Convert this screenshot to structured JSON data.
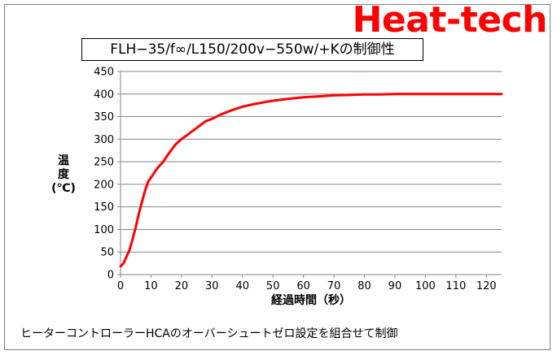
{
  "brand": {
    "text": "Heat-tech",
    "color": "#ff0000"
  },
  "chart_data": {
    "type": "line",
    "title": "FLH−35/f∞/L150/200v−550w/+Kの制御性",
    "xlabel": "経過時間（秒）",
    "ylabel_lines": [
      "温",
      "度",
      "(℃)"
    ],
    "xlim": [
      0,
      125
    ],
    "ylim": [
      0,
      450
    ],
    "x_ticks": [
      0,
      10,
      20,
      30,
      40,
      50,
      60,
      70,
      80,
      90,
      100,
      110,
      120
    ],
    "y_ticks": [
      0,
      50,
      100,
      150,
      200,
      250,
      300,
      350,
      400,
      450
    ],
    "grid": {
      "horizontal": true,
      "vertical": false
    },
    "legend": "none",
    "series": [
      {
        "color": "#ff0000",
        "x": [
          0,
          1,
          2,
          3,
          4,
          5,
          6,
          7,
          8,
          9,
          10,
          12,
          14,
          16,
          18,
          20,
          22,
          24,
          26,
          28,
          30,
          33,
          36,
          40,
          44,
          48,
          52,
          56,
          60,
          65,
          70,
          75,
          80,
          85,
          90,
          100,
          110,
          125
        ],
        "y": [
          18,
          25,
          40,
          55,
          80,
          105,
          135,
          160,
          185,
          205,
          215,
          235,
          250,
          270,
          288,
          300,
          310,
          320,
          330,
          340,
          345,
          355,
          363,
          372,
          378,
          383,
          387,
          390,
          393,
          395,
          397,
          398,
          399,
          399,
          400,
          400,
          400,
          400
        ]
      }
    ]
  },
  "footer": {
    "note": "ヒーターコントローラーHCAのオーバーシュートゼロ設定を組合せて制御"
  }
}
